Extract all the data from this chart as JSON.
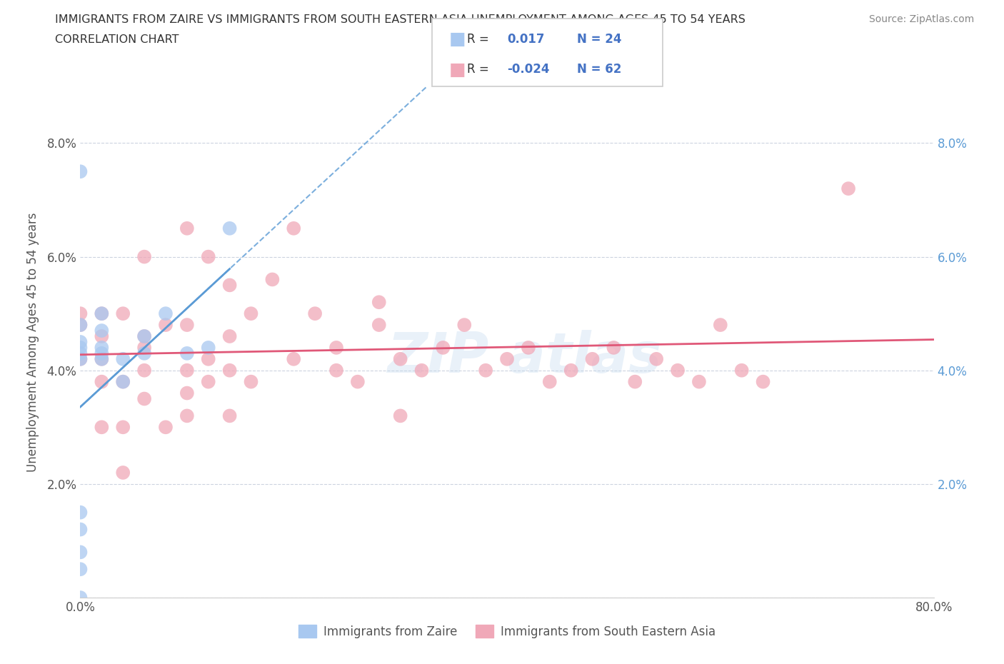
{
  "title_line1": "IMMIGRANTS FROM ZAIRE VS IMMIGRANTS FROM SOUTH EASTERN ASIA UNEMPLOYMENT AMONG AGES 45 TO 54 YEARS",
  "title_line2": "CORRELATION CHART",
  "source_text": "Source: ZipAtlas.com",
  "ylabel": "Unemployment Among Ages 45 to 54 years",
  "xlim": [
    0.0,
    0.8
  ],
  "ylim": [
    0.0,
    0.09
  ],
  "xtick_vals": [
    0.0,
    0.1,
    0.2,
    0.3,
    0.4,
    0.5,
    0.6,
    0.7,
    0.8
  ],
  "xtick_labels": [
    "0.0%",
    "",
    "",
    "",
    "",
    "",
    "",
    "",
    "80.0%"
  ],
  "ytick_vals": [
    0.0,
    0.02,
    0.04,
    0.06,
    0.08
  ],
  "ytick_labels": [
    "",
    "2.0%",
    "4.0%",
    "6.0%",
    "8.0%"
  ],
  "zaire_R": 0.017,
  "zaire_N": 24,
  "sea_R": -0.024,
  "sea_N": 62,
  "zaire_color": "#a8c8f0",
  "sea_color": "#f0a8b8",
  "zaire_line_color": "#5b9bd5",
  "sea_line_color": "#e05878",
  "background_color": "#ffffff",
  "legend_text_color": "#4472c4",
  "zaire_x": [
    0.0,
    0.0,
    0.0,
    0.0,
    0.0,
    0.0,
    0.0,
    0.0,
    0.0,
    0.0,
    0.0,
    0.02,
    0.02,
    0.02,
    0.02,
    0.02,
    0.04,
    0.04,
    0.06,
    0.06,
    0.08,
    0.1,
    0.12,
    0.14
  ],
  "zaire_y": [
    0.0,
    0.005,
    0.008,
    0.012,
    0.015,
    0.042,
    0.043,
    0.044,
    0.045,
    0.048,
    0.075,
    0.042,
    0.043,
    0.044,
    0.047,
    0.05,
    0.038,
    0.042,
    0.043,
    0.046,
    0.05,
    0.043,
    0.044,
    0.065
  ],
  "sea_x": [
    0.0,
    0.0,
    0.0,
    0.02,
    0.02,
    0.02,
    0.02,
    0.02,
    0.04,
    0.04,
    0.04,
    0.04,
    0.06,
    0.06,
    0.06,
    0.06,
    0.06,
    0.08,
    0.08,
    0.1,
    0.1,
    0.1,
    0.1,
    0.1,
    0.12,
    0.12,
    0.12,
    0.14,
    0.14,
    0.14,
    0.14,
    0.16,
    0.16,
    0.18,
    0.2,
    0.2,
    0.22,
    0.24,
    0.24,
    0.26,
    0.28,
    0.28,
    0.3,
    0.3,
    0.32,
    0.34,
    0.36,
    0.38,
    0.4,
    0.42,
    0.44,
    0.46,
    0.48,
    0.5,
    0.52,
    0.54,
    0.56,
    0.58,
    0.6,
    0.62,
    0.64,
    0.72
  ],
  "sea_y": [
    0.042,
    0.048,
    0.05,
    0.03,
    0.038,
    0.042,
    0.046,
    0.05,
    0.022,
    0.03,
    0.038,
    0.05,
    0.035,
    0.04,
    0.044,
    0.046,
    0.06,
    0.03,
    0.048,
    0.032,
    0.036,
    0.04,
    0.048,
    0.065,
    0.038,
    0.042,
    0.06,
    0.032,
    0.04,
    0.046,
    0.055,
    0.038,
    0.05,
    0.056,
    0.042,
    0.065,
    0.05,
    0.04,
    0.044,
    0.038,
    0.048,
    0.052,
    0.032,
    0.042,
    0.04,
    0.044,
    0.048,
    0.04,
    0.042,
    0.044,
    0.038,
    0.04,
    0.042,
    0.044,
    0.038,
    0.042,
    0.04,
    0.038,
    0.048,
    0.04,
    0.038,
    0.072
  ]
}
